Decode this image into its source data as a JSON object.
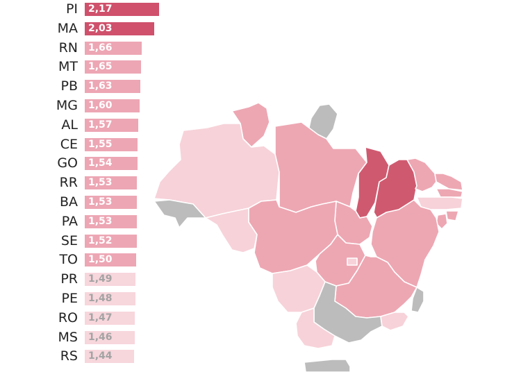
{
  "chart_data": {
    "type": "bar",
    "orientation": "horizontal",
    "title": "",
    "xlabel": "",
    "ylabel": "",
    "xlim": [
      0,
      2.2
    ],
    "categories": [
      "PI",
      "MA",
      "RN",
      "MT",
      "PB",
      "MG",
      "AL",
      "CE",
      "GO",
      "RR",
      "BA",
      "PA",
      "SE",
      "TO",
      "PR",
      "PE",
      "RO",
      "MS",
      "RS"
    ],
    "values": [
      2.17,
      2.03,
      1.66,
      1.65,
      1.63,
      1.6,
      1.57,
      1.55,
      1.54,
      1.53,
      1.53,
      1.53,
      1.52,
      1.5,
      1.49,
      1.48,
      1.47,
      1.46,
      1.44
    ],
    "value_labels": [
      "2,17",
      "2,03",
      "1,66",
      "1,65",
      "1,63",
      "1,60",
      "1,57",
      "1,55",
      "1,54",
      "1,53",
      "1,53",
      "1,53",
      "1,52",
      "1,50",
      "1,49",
      "1,48",
      "1,47",
      "1,46",
      "1,44"
    ],
    "color_tiers": [
      {
        "tier": "high",
        "bar_color": "#cf516c",
        "label_color": "#ffffff"
      },
      {
        "tier": "mid",
        "bar_color": "#eda6b4",
        "label_color": "#ffffff"
      },
      {
        "tier": "low",
        "bar_color": "#f7d6dc",
        "label_color": "#a3a3a3"
      }
    ],
    "map_colors": {
      "dark": "#cf5a70",
      "mid": "#eda7b3",
      "light": "#f7d2d9",
      "no_data": "#bcbcbc"
    }
  }
}
